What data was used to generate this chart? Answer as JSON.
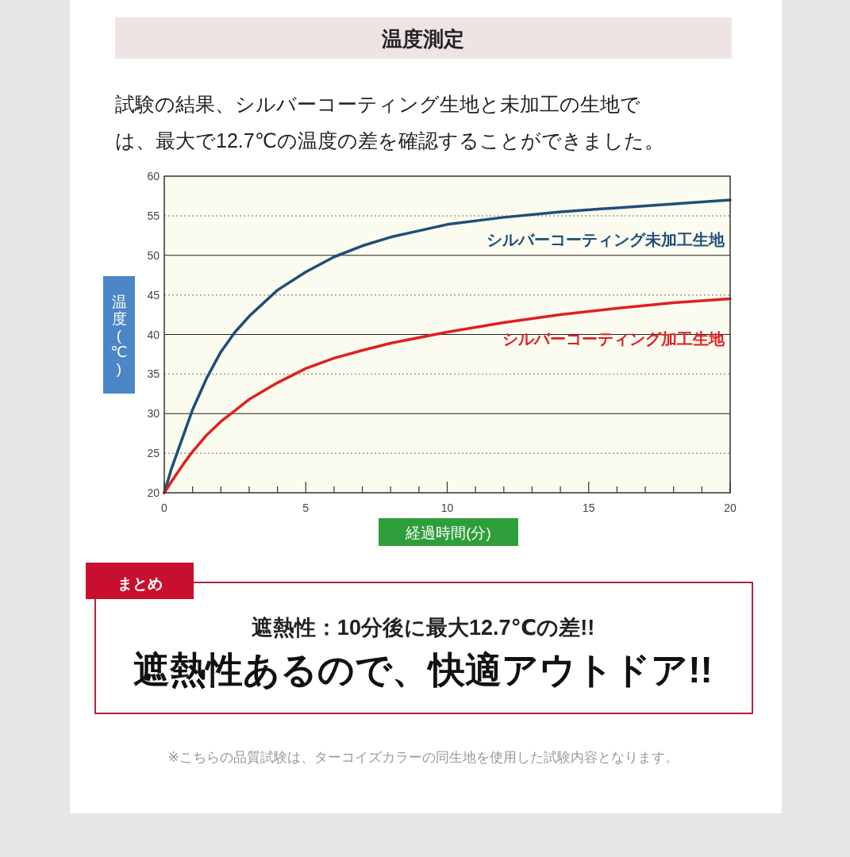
{
  "chart_data": {
    "type": "line",
    "title": "温度測定",
    "subtitle": "試験の結果、シルバーコーティング生地と未加工の生地では、最大で12.7℃の温度の差を確認することができました。",
    "xlabel": "経過時間(分)",
    "ylabel": "温度(℃)",
    "x": [
      0,
      0.25,
      0.5,
      0.75,
      1,
      1.5,
      2,
      2.5,
      3,
      4,
      5,
      6,
      7,
      8,
      10,
      12,
      14,
      16,
      18,
      20
    ],
    "series": [
      {
        "name": "シルバーコーティング未加工生地",
        "color": "#1f4e79",
        "values": [
          20,
          23,
          25.5,
          28,
          30.5,
          34.5,
          37.8,
          40.3,
          42.3,
          45.6,
          47.9,
          49.8,
          51.2,
          52.3,
          53.9,
          54.8,
          55.5,
          56.0,
          56.5,
          57.0
        ]
      },
      {
        "name": "シルバーコーティング加工生地",
        "color": "#e02020",
        "values": [
          20,
          21.4,
          22.7,
          24,
          25.2,
          27.3,
          29.0,
          30.4,
          31.8,
          33.9,
          35.7,
          37.0,
          38.0,
          38.9,
          40.3,
          41.5,
          42.5,
          43.3,
          44.0,
          44.5
        ]
      }
    ],
    "xlim": [
      0,
      20
    ],
    "ylim": [
      20,
      60
    ],
    "xticks": [
      0,
      {
        "value": 1,
        "label": null
      },
      {
        "value": 2,
        "label": null
      },
      {
        "value": 3,
        "label": null
      },
      {
        "value": 4,
        "label": null
      },
      5,
      {
        "value": 6,
        "label": null
      },
      {
        "value": 7,
        "label": null
      },
      {
        "value": 8,
        "label": null
      },
      {
        "value": 9,
        "label": null
      },
      10,
      {
        "value": 11,
        "label": null
      },
      {
        "value": 12,
        "label": null
      },
      {
        "value": 13,
        "label": null
      },
      {
        "value": 14,
        "label": null
      },
      15,
      {
        "value": 16,
        "label": null
      },
      {
        "value": 17,
        "label": null
      },
      {
        "value": 18,
        "label": null
      },
      {
        "value": 19,
        "label": null
      },
      20
    ],
    "yticks": [
      20,
      25,
      30,
      35,
      40,
      45,
      50,
      55,
      60
    ],
    "grid": "y",
    "annotations": [
      "まとめ",
      "遮熱性：10分後に最大12.7℃の差!!",
      "遮熱性あるので、快適アウトドア!!",
      "※こちらの品質試験は、ターコイズカラーの同生地を使用した試験内容となります。"
    ]
  }
}
